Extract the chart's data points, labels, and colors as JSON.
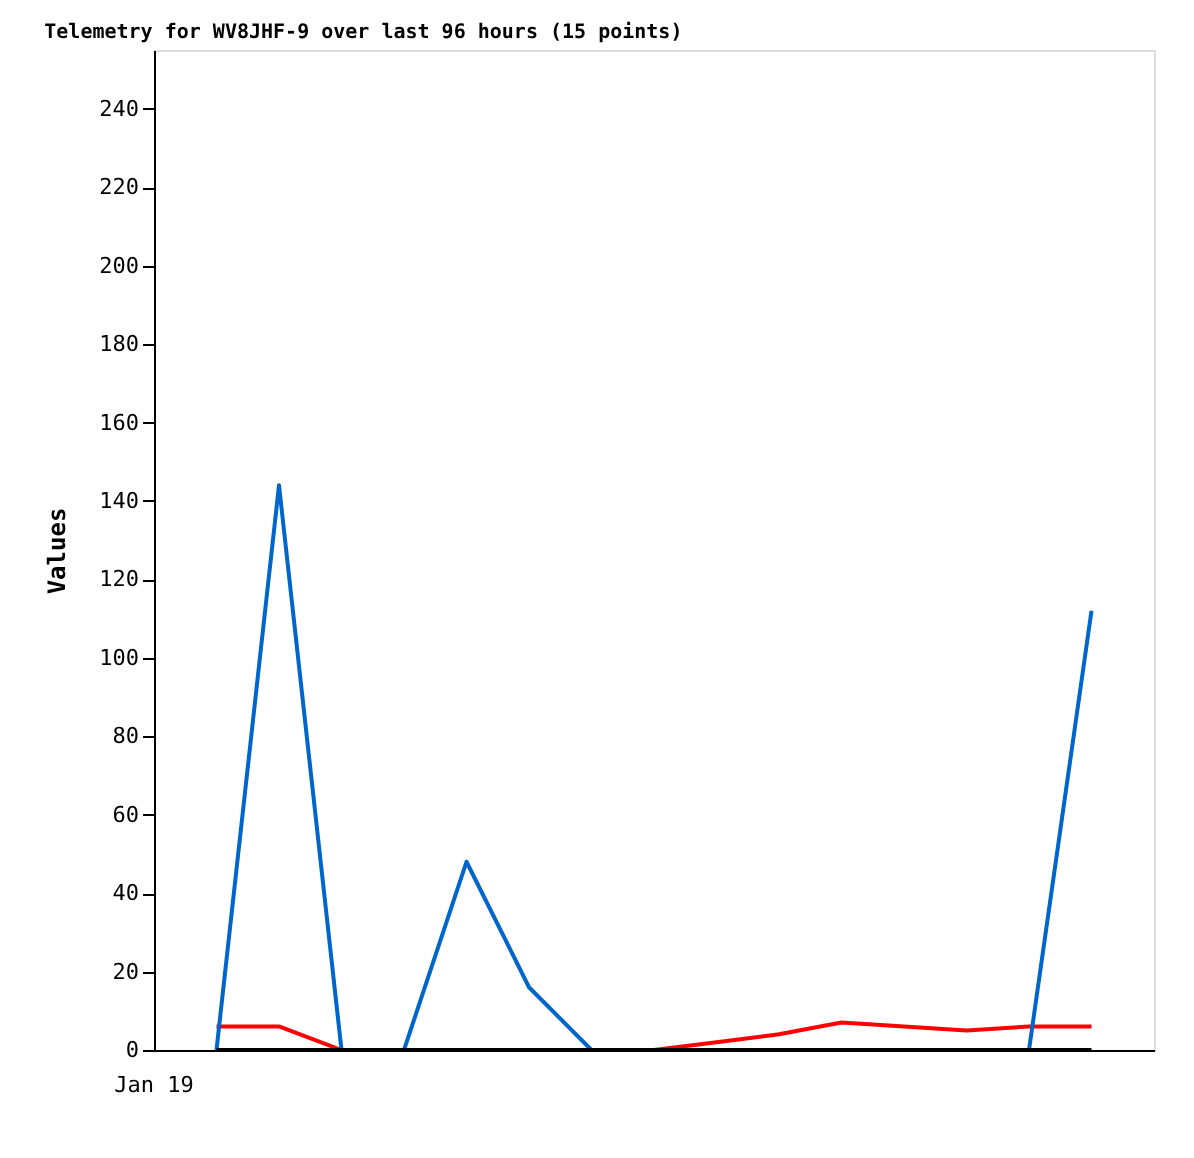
{
  "chart_data": {
    "type": "line",
    "title": "Telemetry for WV8JHF-9 over last 96 hours (15 points)",
    "ylabel": "Values",
    "categories": [
      null,
      null,
      null,
      null,
      null,
      null,
      null,
      null,
      null,
      null,
      null,
      null,
      null,
      null,
      null
    ],
    "annotations": [
      "Jan 19"
    ],
    "ylim": [
      0,
      255
    ],
    "yticks": [
      0,
      20,
      40,
      60,
      80,
      100,
      120,
      140,
      160,
      180,
      200,
      220,
      240
    ],
    "series": [
      {
        "color": "#ff0000",
        "values": [
          6,
          6,
          0,
          0,
          0,
          0,
          0,
          0,
          2,
          4,
          7,
          6,
          5,
          6,
          6
        ]
      },
      {
        "color": "#0066cc",
        "values": [
          0,
          144,
          0,
          0,
          48,
          16,
          0,
          0,
          0,
          0,
          0,
          0,
          0,
          0,
          112
        ]
      },
      {
        "color": "#000000",
        "values": [
          0,
          0,
          0,
          0,
          0,
          0,
          0,
          0,
          0,
          0,
          0,
          0,
          0,
          0,
          0
        ]
      }
    ],
    "grid": false,
    "legend": false,
    "marker": "none",
    "line_style": "solid"
  }
}
